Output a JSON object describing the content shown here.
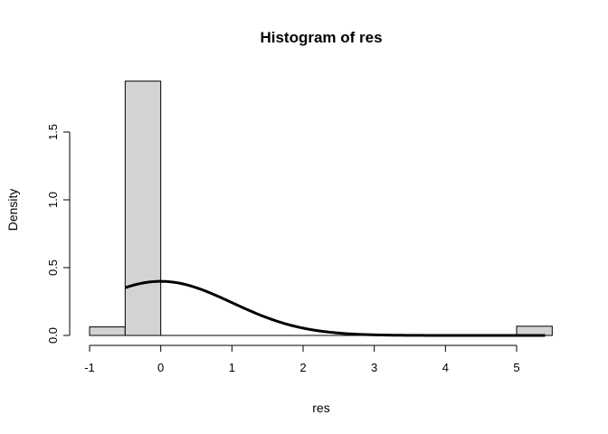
{
  "chart_data": {
    "type": "bar",
    "title": "Histogram of res",
    "xlabel": "res",
    "ylabel": "Density",
    "xlim": [
      -1,
      5.5
    ],
    "ylim": [
      0,
      1.88
    ],
    "x_ticks": [
      -1,
      0,
      1,
      2,
      3,
      4,
      5
    ],
    "y_ticks": [
      0.0,
      0.5,
      1.0,
      1.5
    ],
    "y_tick_labels": [
      "0.0",
      "0.5",
      "1.0",
      "1.5"
    ],
    "grid": false,
    "bars": [
      {
        "x0": -1.0,
        "x1": -0.5,
        "density": 0.063
      },
      {
        "x0": -0.5,
        "x1": 0.0,
        "density": 1.875
      },
      {
        "x0": 5.0,
        "x1": 5.5,
        "density": 0.068
      }
    ],
    "curve": {
      "type": "normal_density",
      "mean": 0,
      "sd": 1,
      "x_from": -0.5,
      "x_to": 5.4
    },
    "colors": {
      "bar_fill": "#d3d3d3",
      "bar_stroke": "#000000",
      "curve": "#000000"
    }
  }
}
